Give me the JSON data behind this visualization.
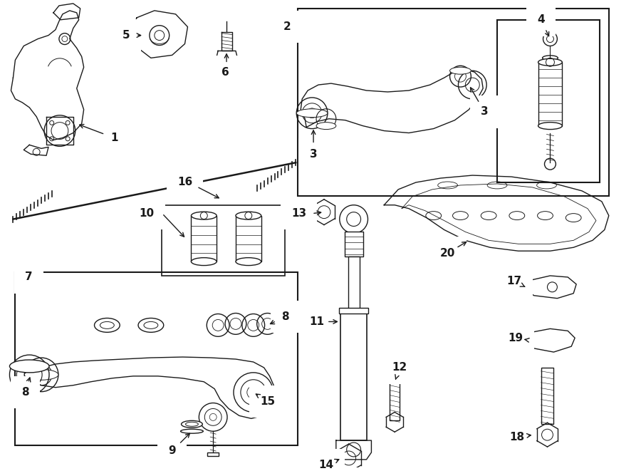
{
  "bg_color": "#ffffff",
  "line_color": "#1a1a1a",
  "fig_width": 9.0,
  "fig_height": 6.61,
  "dpi": 100,
  "lw": 1.0
}
